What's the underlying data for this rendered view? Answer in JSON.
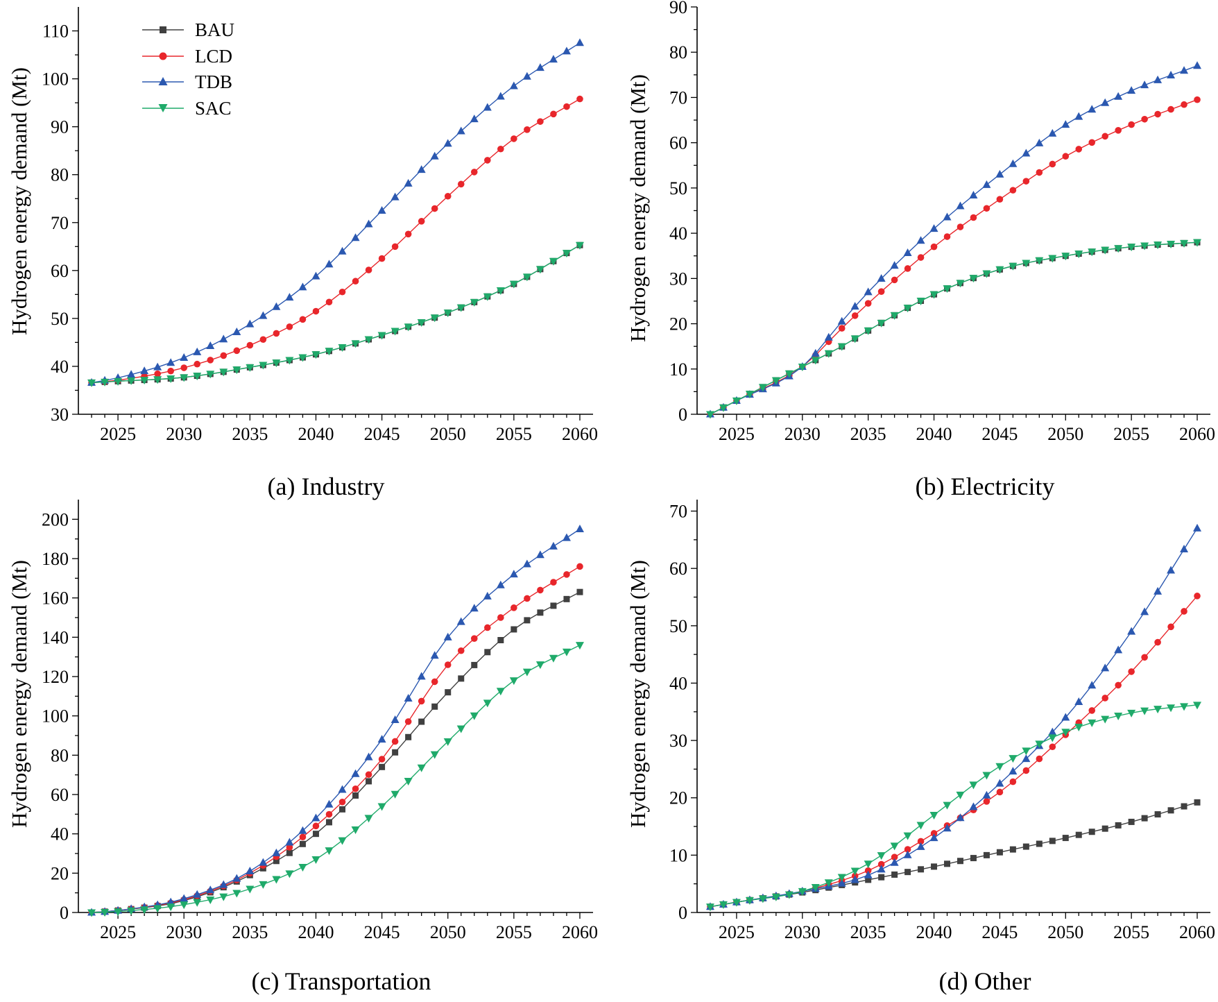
{
  "legend": {
    "entries": [
      {
        "name": "BAU",
        "color": "#404040",
        "marker": "square"
      },
      {
        "name": "LCD",
        "color": "#e8262b",
        "marker": "circle"
      },
      {
        "name": "TDB",
        "color": "#2b58b0",
        "marker": "triangle-up"
      },
      {
        "name": "SAC",
        "color": "#1faa6a",
        "marker": "triangle-down"
      }
    ]
  },
  "chart_data": [
    {
      "id": "industry",
      "type": "line",
      "caption": "(a) Industry",
      "ylabel": "Hydrogen energy demand (Mt)",
      "xlim": [
        2022,
        2061
      ],
      "ylim": [
        30,
        115
      ],
      "xticks": [
        2025,
        2030,
        2035,
        2040,
        2045,
        2050,
        2055,
        2060
      ],
      "yticks": [
        30,
        40,
        50,
        60,
        70,
        80,
        90,
        100,
        110
      ],
      "x_start": 2023,
      "x_end": 2060,
      "anchors": {
        "BAU": [
          [
            2023,
            36.6
          ],
          [
            2025,
            36.9
          ],
          [
            2030,
            37.7
          ],
          [
            2035,
            39.8
          ],
          [
            2040,
            42.5
          ],
          [
            2045,
            46.5
          ],
          [
            2050,
            51.2
          ],
          [
            2055,
            57.2
          ],
          [
            2060,
            65.3
          ]
        ],
        "LCD": [
          [
            2023,
            36.6
          ],
          [
            2025,
            37.1
          ],
          [
            2030,
            39.7
          ],
          [
            2035,
            44.4
          ],
          [
            2040,
            51.5
          ],
          [
            2045,
            62.5
          ],
          [
            2050,
            75.5
          ],
          [
            2055,
            87.5
          ],
          [
            2060,
            95.8
          ]
        ],
        "TDB": [
          [
            2023,
            36.6
          ],
          [
            2025,
            37.6
          ],
          [
            2030,
            41.8
          ],
          [
            2035,
            48.8
          ],
          [
            2040,
            58.8
          ],
          [
            2045,
            72.5
          ],
          [
            2050,
            86.5
          ],
          [
            2055,
            98.5
          ],
          [
            2060,
            107.5
          ]
        ],
        "SAC": [
          [
            2023,
            36.6
          ],
          [
            2025,
            36.9
          ],
          [
            2030,
            37.7
          ],
          [
            2035,
            39.8
          ],
          [
            2040,
            42.5
          ],
          [
            2045,
            46.5
          ],
          [
            2050,
            51.2
          ],
          [
            2055,
            57.2
          ],
          [
            2060,
            65.3
          ]
        ]
      }
    },
    {
      "id": "electricity",
      "type": "line",
      "caption": "(b) Electricity",
      "ylabel": "Hydrogen energy demand (Mt)",
      "xlim": [
        2022,
        2061
      ],
      "ylim": [
        0,
        90
      ],
      "xticks": [
        2025,
        2030,
        2035,
        2040,
        2045,
        2050,
        2055,
        2060
      ],
      "yticks": [
        0,
        10,
        20,
        30,
        40,
        50,
        60,
        70,
        80,
        90
      ],
      "x_start": 2023,
      "x_end": 2060,
      "anchors": {
        "BAU": [
          [
            2023,
            0
          ],
          [
            2025,
            3
          ],
          [
            2030,
            10.5
          ],
          [
            2033,
            15
          ],
          [
            2035,
            18.5
          ],
          [
            2040,
            26.5
          ],
          [
            2045,
            32
          ],
          [
            2050,
            35
          ],
          [
            2055,
            37
          ],
          [
            2060,
            38
          ]
        ],
        "LCD": [
          [
            2023,
            0
          ],
          [
            2025,
            3
          ],
          [
            2030,
            10.5
          ],
          [
            2033,
            19
          ],
          [
            2035,
            24.5
          ],
          [
            2040,
            37
          ],
          [
            2045,
            47.5
          ],
          [
            2050,
            57
          ],
          [
            2055,
            64
          ],
          [
            2060,
            69.5
          ]
        ],
        "TDB": [
          [
            2023,
            0
          ],
          [
            2025,
            3
          ],
          [
            2030,
            10.5
          ],
          [
            2033,
            20.5
          ],
          [
            2035,
            27
          ],
          [
            2040,
            41
          ],
          [
            2045,
            53
          ],
          [
            2050,
            64
          ],
          [
            2055,
            71.5
          ],
          [
            2060,
            77
          ]
        ],
        "SAC": [
          [
            2023,
            0
          ],
          [
            2025,
            3
          ],
          [
            2030,
            10.5
          ],
          [
            2033,
            15
          ],
          [
            2035,
            18.5
          ],
          [
            2040,
            26.5
          ],
          [
            2045,
            32
          ],
          [
            2050,
            35
          ],
          [
            2055,
            37
          ],
          [
            2060,
            38
          ]
        ]
      }
    },
    {
      "id": "transportation",
      "type": "line",
      "caption": "(c) Transportation",
      "ylabel": "Hydrogen energy demand (Mt)",
      "xlim": [
        2022,
        2061
      ],
      "ylim": [
        0,
        210
      ],
      "xticks": [
        2025,
        2030,
        2035,
        2040,
        2045,
        2050,
        2055,
        2060
      ],
      "yticks": [
        0,
        20,
        40,
        60,
        80,
        100,
        120,
        140,
        160,
        180,
        200
      ],
      "x_start": 2023,
      "x_end": 2060,
      "anchors": {
        "BAU": [
          [
            2023,
            0
          ],
          [
            2025,
            1
          ],
          [
            2030,
            6
          ],
          [
            2035,
            19
          ],
          [
            2040,
            40
          ],
          [
            2045,
            74
          ],
          [
            2050,
            112
          ],
          [
            2055,
            144
          ],
          [
            2060,
            163
          ]
        ],
        "LCD": [
          [
            2023,
            0
          ],
          [
            2025,
            1
          ],
          [
            2030,
            6.5
          ],
          [
            2035,
            20
          ],
          [
            2040,
            44
          ],
          [
            2045,
            78
          ],
          [
            2050,
            126
          ],
          [
            2055,
            155
          ],
          [
            2060,
            176
          ]
        ],
        "TDB": [
          [
            2023,
            0
          ],
          [
            2025,
            1
          ],
          [
            2030,
            7
          ],
          [
            2035,
            21
          ],
          [
            2040,
            48
          ],
          [
            2045,
            88
          ],
          [
            2050,
            140
          ],
          [
            2055,
            172
          ],
          [
            2060,
            195
          ]
        ],
        "SAC": [
          [
            2023,
            0
          ],
          [
            2025,
            0.5
          ],
          [
            2030,
            4
          ],
          [
            2035,
            12
          ],
          [
            2040,
            27
          ],
          [
            2045,
            54
          ],
          [
            2050,
            87
          ],
          [
            2055,
            118
          ],
          [
            2060,
            136
          ]
        ]
      }
    },
    {
      "id": "other",
      "type": "line",
      "caption": "(d) Other",
      "ylabel": "Hydrogen energy demand (Mt)",
      "xlim": [
        2022,
        2061
      ],
      "ylim": [
        0,
        72
      ],
      "xticks": [
        2025,
        2030,
        2035,
        2040,
        2045,
        2050,
        2055,
        2060
      ],
      "yticks": [
        0,
        10,
        20,
        30,
        40,
        50,
        60,
        70
      ],
      "x_start": 2023,
      "x_end": 2060,
      "anchors": {
        "BAU": [
          [
            2023,
            1
          ],
          [
            2025,
            1.8
          ],
          [
            2030,
            3.5
          ],
          [
            2035,
            5.7
          ],
          [
            2040,
            8
          ],
          [
            2045,
            10.5
          ],
          [
            2050,
            13
          ],
          [
            2055,
            15.8
          ],
          [
            2060,
            19.2
          ]
        ],
        "LCD": [
          [
            2023,
            1
          ],
          [
            2025,
            1.8
          ],
          [
            2030,
            3.7
          ],
          [
            2035,
            7.3
          ],
          [
            2040,
            13.8
          ],
          [
            2045,
            21
          ],
          [
            2050,
            31
          ],
          [
            2055,
            42
          ],
          [
            2060,
            55.2
          ]
        ],
        "TDB": [
          [
            2023,
            1
          ],
          [
            2025,
            1.8
          ],
          [
            2030,
            3.7
          ],
          [
            2035,
            6.5
          ],
          [
            2040,
            13
          ],
          [
            2045,
            22.5
          ],
          [
            2050,
            34
          ],
          [
            2055,
            49
          ],
          [
            2060,
            67
          ]
        ],
        "SAC": [
          [
            2023,
            1
          ],
          [
            2025,
            1.8
          ],
          [
            2030,
            3.7
          ],
          [
            2035,
            8.5
          ],
          [
            2040,
            17
          ],
          [
            2045,
            25.5
          ],
          [
            2050,
            31.5
          ],
          [
            2055,
            34.8
          ],
          [
            2060,
            36.2
          ]
        ]
      }
    }
  ]
}
